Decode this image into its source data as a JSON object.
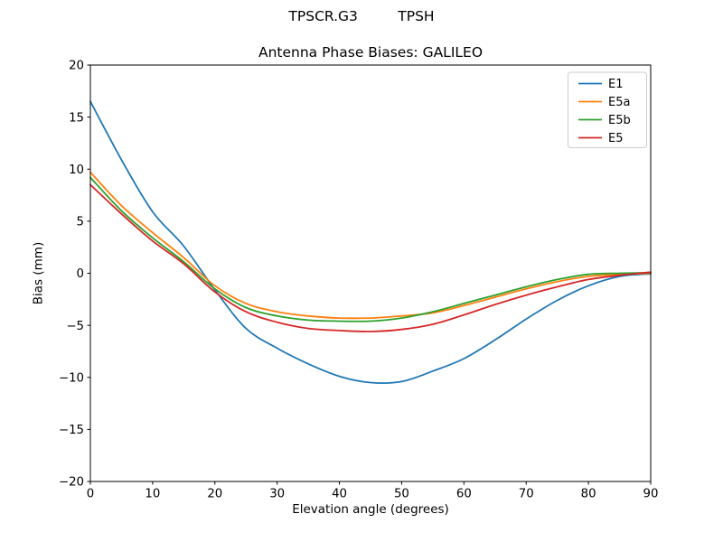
{
  "chart_data": {
    "type": "line",
    "suptitle": "TPSCR.G3         TPSH",
    "title": "Antenna Phase Biases: GALILEO",
    "xlabel": "Elevation angle (degrees)",
    "ylabel": "Bias (mm)",
    "xlim": [
      0,
      90
    ],
    "ylim": [
      -20,
      20
    ],
    "xticks": [
      0,
      10,
      20,
      30,
      40,
      50,
      60,
      70,
      80,
      90
    ],
    "yticks": [
      -20,
      -15,
      -10,
      -5,
      0,
      5,
      10,
      15,
      20
    ],
    "grid": false,
    "legend_position": "upper right",
    "axis_color": "#000000",
    "x": [
      0,
      5,
      10,
      15,
      20,
      25,
      30,
      35,
      40,
      45,
      50,
      55,
      60,
      65,
      70,
      75,
      80,
      85,
      90
    ],
    "series": [
      {
        "name": "E1",
        "color": "#1f77b4",
        "values": [
          16.5,
          10.9,
          5.9,
          2.6,
          -1.6,
          -5.3,
          -7.2,
          -8.7,
          -9.9,
          -10.5,
          -10.4,
          -9.4,
          -8.2,
          -6.4,
          -4.4,
          -2.6,
          -1.2,
          -0.3,
          -0.05
        ]
      },
      {
        "name": "E5a",
        "color": "#ff7f0e",
        "values": [
          9.7,
          6.5,
          3.9,
          1.5,
          -1.2,
          -2.9,
          -3.7,
          -4.1,
          -4.3,
          -4.3,
          -4.1,
          -3.8,
          -3.1,
          -2.3,
          -1.5,
          -0.8,
          -0.3,
          -0.1,
          0.0
        ]
      },
      {
        "name": "E5b",
        "color": "#2ca02c",
        "values": [
          9.2,
          6.0,
          3.4,
          1.1,
          -1.5,
          -3.3,
          -4.1,
          -4.5,
          -4.6,
          -4.6,
          -4.3,
          -3.7,
          -2.9,
          -2.1,
          -1.3,
          -0.6,
          -0.1,
          0.0,
          0.05
        ]
      },
      {
        "name": "E5",
        "color": "#d62728",
        "values": [
          8.5,
          5.7,
          3.1,
          0.9,
          -1.8,
          -3.7,
          -4.7,
          -5.3,
          -5.5,
          -5.6,
          -5.4,
          -4.9,
          -4.0,
          -3.0,
          -2.1,
          -1.3,
          -0.6,
          -0.2,
          0.1
        ]
      }
    ]
  }
}
